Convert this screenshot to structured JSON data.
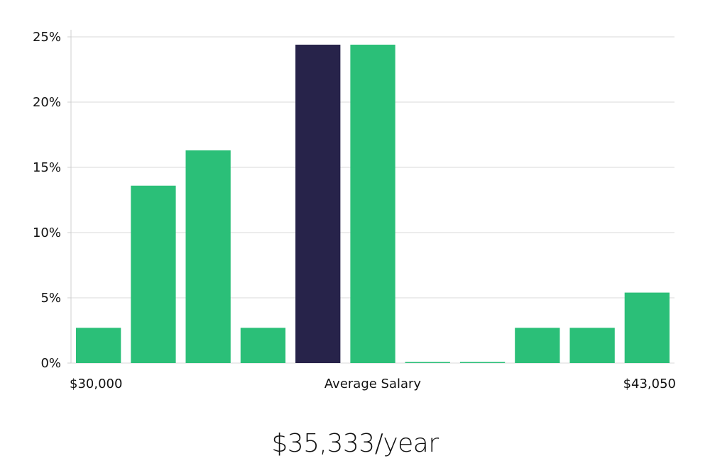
{
  "chart_data": {
    "type": "bar",
    "title": "",
    "xlabel": "Average Salary",
    "ylabel": "",
    "x_range_labels": {
      "min": "$30,000",
      "max": "$43,050"
    },
    "ylim": [
      0,
      25
    ],
    "y_ticks": [
      0,
      5,
      10,
      15,
      20,
      25
    ],
    "y_tick_labels": [
      "0%",
      "5%",
      "10%",
      "15%",
      "20%",
      "25%"
    ],
    "grid": true,
    "values": [
      2.7,
      13.6,
      16.3,
      2.7,
      24.4,
      24.4,
      0,
      0,
      2.7,
      2.7,
      5.4
    ],
    "highlight_index": 4,
    "colors": {
      "bar": "#2bbf78",
      "highlight": "#27234a",
      "grid": "#d9d9d9"
    }
  },
  "summary": {
    "salary_text": "$35,333/year"
  }
}
